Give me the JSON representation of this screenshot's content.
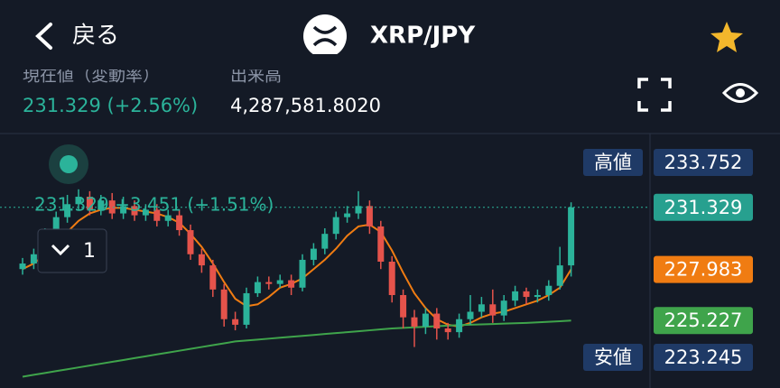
{
  "header": {
    "back_label": "戻る",
    "title": "XRP/JPY"
  },
  "stats": {
    "price_label": "現在値（変動率）",
    "price": "231.329 (+2.56%)",
    "volume_label": "出来高",
    "volume": "4,287,581.8020"
  },
  "overlay": {
    "quote": "231.329 +3.451 (+1.51%)",
    "interval": "1"
  },
  "chart_data": {
    "type": "candlestick",
    "ylim": [
      221.59,
      235.21
    ],
    "up_color": "#2bb39a",
    "down_color": "#e5534b",
    "open": [
      228.0,
      228.3,
      228.8,
      229.9,
      230.8,
      231.5,
      231.9,
      231.2,
      231.7,
      231.0,
      231.4,
      230.9,
      231.2,
      230.6,
      230.9,
      230.1,
      228.8,
      228.2,
      226.9,
      225.3,
      225.0,
      226.7,
      227.3,
      227.2,
      227.4,
      227.0,
      228.5,
      229.1,
      229.9,
      230.8,
      231.0,
      231.4,
      230.3,
      228.4,
      226.6,
      225.4,
      224.9,
      225.6,
      224.8,
      224.6,
      225.3,
      225.7,
      226.1,
      225.5,
      226.3,
      226.8,
      226.5,
      226.6,
      227.1,
      228.2
    ],
    "high": [
      228.6,
      229.1,
      230.2,
      231.1,
      232.0,
      232.3,
      232.2,
      232.0,
      232.1,
      231.9,
      231.7,
      231.5,
      231.5,
      231.2,
      231.2,
      230.4,
      229.1,
      228.5,
      227.2,
      225.7,
      227.0,
      227.6,
      227.6,
      227.7,
      227.7,
      228.8,
      229.4,
      230.2,
      231.1,
      231.4,
      232.2,
      231.7,
      230.6,
      228.7,
      226.9,
      225.8,
      225.9,
      225.9,
      225.1,
      225.6,
      226.6,
      226.5,
      226.9,
      226.6,
      227.1,
      227.0,
      226.9,
      227.4,
      229.2,
      231.6
    ],
    "low": [
      227.7,
      228.0,
      228.6,
      229.6,
      230.5,
      231.2,
      230.9,
      230.9,
      230.7,
      230.7,
      230.6,
      230.6,
      230.3,
      230.3,
      229.8,
      228.5,
      227.8,
      226.5,
      224.9,
      224.7,
      224.8,
      226.5,
      226.9,
      227.0,
      226.6,
      226.8,
      228.2,
      228.8,
      229.6,
      230.5,
      230.7,
      229.9,
      228.0,
      226.2,
      224.8,
      223.8,
      224.5,
      224.2,
      224.2,
      224.3,
      225.0,
      225.4,
      225.1,
      225.2,
      226.0,
      226.1,
      226.2,
      226.3,
      226.9,
      227.6
    ],
    "close": [
      228.3,
      228.8,
      229.9,
      230.8,
      231.5,
      231.9,
      231.2,
      231.7,
      231.0,
      231.4,
      230.9,
      231.2,
      230.6,
      230.9,
      230.1,
      228.8,
      228.2,
      226.9,
      225.3,
      225.0,
      226.7,
      227.3,
      227.2,
      227.4,
      227.0,
      228.5,
      229.1,
      229.9,
      230.8,
      231.0,
      231.4,
      230.3,
      228.4,
      226.6,
      225.4,
      224.9,
      225.6,
      224.8,
      224.6,
      225.3,
      225.7,
      226.1,
      225.5,
      226.3,
      226.8,
      226.5,
      226.6,
      227.1,
      228.2,
      231.329
    ],
    "lines": [
      {
        "color": "#f07c12",
        "values": [
          228.0,
          228.3,
          228.8,
          229.4,
          230.0,
          230.6,
          231.0,
          231.2,
          231.3,
          231.3,
          231.2,
          231.1,
          231.0,
          230.8,
          230.5,
          229.9,
          229.2,
          228.3,
          227.3,
          226.4,
          226.0,
          226.1,
          226.5,
          227.0,
          227.2,
          227.5,
          228.0,
          228.5,
          229.1,
          229.8,
          230.3,
          230.4,
          230.0,
          229.0,
          227.8,
          226.7,
          225.9,
          225.3,
          225.0,
          224.9,
          225.1,
          225.4,
          225.6,
          225.7,
          225.9,
          226.1,
          226.3,
          226.6,
          227.0,
          227.983
        ]
      },
      {
        "color": "#3fa44b",
        "values": [
          222.2,
          222.3,
          222.4,
          222.5,
          222.6,
          222.7,
          222.8,
          222.9,
          223.0,
          223.1,
          223.2,
          223.3,
          223.4,
          223.5,
          223.6,
          223.7,
          223.8,
          223.9,
          224.0,
          224.1,
          224.15,
          224.2,
          224.25,
          224.3,
          224.35,
          224.4,
          224.45,
          224.5,
          224.55,
          224.6,
          224.65,
          224.7,
          224.75,
          224.8,
          224.83,
          224.86,
          224.89,
          224.92,
          224.95,
          224.98,
          225.0,
          225.02,
          225.04,
          225.06,
          225.08,
          225.1,
          225.13,
          225.16,
          225.19,
          225.227
        ]
      }
    ],
    "price_labels": [
      {
        "label": "高値",
        "value": 233.752,
        "color": "#1f3a66"
      },
      {
        "value": 231.329,
        "color": "#27a08f"
      },
      {
        "value": 227.983,
        "color": "#f07c12"
      },
      {
        "value": 225.227,
        "color": "#3fa44b"
      },
      {
        "label": "安値",
        "value": 223.245,
        "color": "#1f3a66"
      }
    ]
  }
}
